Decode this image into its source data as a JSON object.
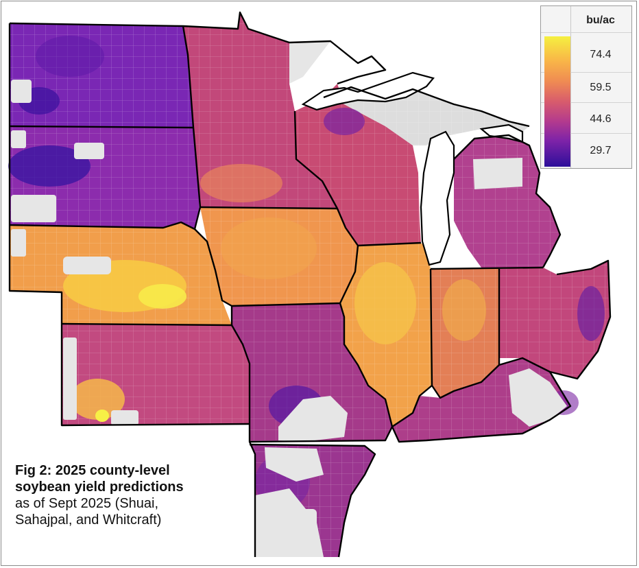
{
  "legend": {
    "unit": "bu/ac",
    "ticks": [
      "74.4",
      "59.5",
      "44.6",
      "29.7"
    ],
    "colormap": [
      "#f5f040",
      "#f9b847",
      "#ef8a53",
      "#d85c6c",
      "#b43b8d",
      "#7e23a8",
      "#2d0f9a"
    ]
  },
  "caption": {
    "title_line1": "Fig 2: 2025 county-level",
    "title_line2": "soybean yield predictions",
    "sub_line1": "as of Sept 2025 (Shuai,",
    "sub_line2": "Sahajpal, and Whitcraft)"
  },
  "colors": {
    "no_data": "#e6e6e6",
    "state_border": "#000000",
    "county_border": "#ffffff",
    "lake": "#ffffff"
  }
}
